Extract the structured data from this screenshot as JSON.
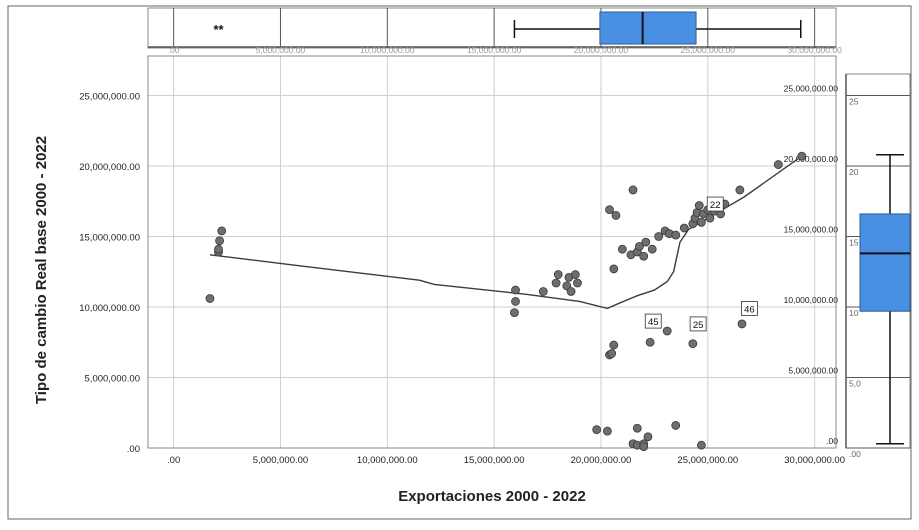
{
  "chart_data": {
    "type": "scatter",
    "xlabel": "Exportaciones 2000 - 2022",
    "ylabel": "Tipo de cambio Real base 2000 - 2022",
    "xlim": [
      -1200000,
      31000000
    ],
    "ylim": [
      0,
      27800000
    ],
    "x_ticks": [
      0,
      5000000,
      10000000,
      15000000,
      20000000,
      25000000,
      30000000
    ],
    "x_tick_labels": [
      ".00",
      "5,000,000.00",
      "10,000,000.00",
      "15,000,000.00",
      "20,000,000.00",
      "25,000,000.00",
      "30,000,000.00"
    ],
    "y_ticks": [
      0,
      5000000,
      10000000,
      15000000,
      20000000,
      25000000
    ],
    "y_tick_labels": [
      ".00",
      "5,000,000.00",
      "10,000,000.00",
      "15,000,000.00",
      "20,000,000.00",
      "25,000,000.00"
    ],
    "grid": true,
    "point_color": "#6e6e6e",
    "line_color": "#3c3c3c",
    "box_color": "#4a90e2",
    "points": [
      [
        1700000,
        10600000
      ],
      [
        2100000,
        13900000
      ],
      [
        2100000,
        14100000
      ],
      [
        2150000,
        14700000
      ],
      [
        2250000,
        15400000
      ],
      [
        16000000,
        11200000
      ],
      [
        16000000,
        10400000
      ],
      [
        15950000,
        9600000
      ],
      [
        17300000,
        11100000
      ],
      [
        17900000,
        11700000
      ],
      [
        18000000,
        12300000
      ],
      [
        18400000,
        11500000
      ],
      [
        18500000,
        12100000
      ],
      [
        18600000,
        11100000
      ],
      [
        18800000,
        12300000
      ],
      [
        18900000,
        11700000
      ],
      [
        20400000,
        6600000
      ],
      [
        20500000,
        6700000
      ],
      [
        20600000,
        7300000
      ],
      [
        20400000,
        16900000
      ],
      [
        20700000,
        16500000
      ],
      [
        20600000,
        12700000
      ],
      [
        21000000,
        14100000
      ],
      [
        21400000,
        13700000
      ],
      [
        21500000,
        18300000
      ],
      [
        21700000,
        13900000
      ],
      [
        21800000,
        14300000
      ],
      [
        22000000,
        13600000
      ],
      [
        22100000,
        14600000
      ],
      [
        22400000,
        14100000
      ],
      [
        22700000,
        15000000
      ],
      [
        23000000,
        15400000
      ],
      [
        23200000,
        15200000
      ],
      [
        23500000,
        15100000
      ],
      [
        23900000,
        15600000
      ],
      [
        24300000,
        15900000
      ],
      [
        24400000,
        16300000
      ],
      [
        24500000,
        16700000
      ],
      [
        24600000,
        17200000
      ],
      [
        24700000,
        16000000
      ],
      [
        24800000,
        16600000
      ],
      [
        25000000,
        16900000
      ],
      [
        25100000,
        16300000
      ],
      [
        25300000,
        16800000
      ],
      [
        25500000,
        17100000
      ],
      [
        25600000,
        16600000
      ],
      [
        25800000,
        17300000
      ],
      [
        26500000,
        18300000
      ],
      [
        28300000,
        20100000
      ],
      [
        29400000,
        20700000
      ],
      [
        23100000,
        8300000
      ],
      [
        22300000,
        7500000
      ],
      [
        24300000,
        7400000
      ],
      [
        26600000,
        8800000
      ],
      [
        19800000,
        1300000
      ],
      [
        20300000,
        1200000
      ],
      [
        21700000,
        1400000
      ],
      [
        21500000,
        300000
      ],
      [
        21700000,
        200000
      ],
      [
        22000000,
        300000
      ],
      [
        22200000,
        800000
      ],
      [
        22000000,
        100000
      ],
      [
        23500000,
        1600000
      ],
      [
        24700000,
        200000
      ]
    ],
    "labeled_points": [
      {
        "label": "22",
        "x": 25300000,
        "y": 17300000
      },
      {
        "label": "45",
        "x": 22400000,
        "y": 9000000
      },
      {
        "label": "25",
        "x": 24500000,
        "y": 8800000
      },
      {
        "label": "46",
        "x": 26900000,
        "y": 9900000
      }
    ],
    "fit_line": [
      [
        1700000,
        13700000
      ],
      [
        6000000,
        12900000
      ],
      [
        11500000,
        11900000
      ],
      [
        12200000,
        11600000
      ],
      [
        16500000,
        10900000
      ],
      [
        19000000,
        10400000
      ],
      [
        20300000,
        9900000
      ],
      [
        20900000,
        10300000
      ],
      [
        21700000,
        10800000
      ],
      [
        22500000,
        11200000
      ],
      [
        23100000,
        11800000
      ],
      [
        23400000,
        12500000
      ],
      [
        23700000,
        14600000
      ],
      [
        24100000,
        15500000
      ],
      [
        25000000,
        16300000
      ],
      [
        26700000,
        17800000
      ],
      [
        29400000,
        20700000
      ]
    ],
    "top_boxplot": {
      "q1": 19950000,
      "median": 21950000,
      "q3": 24450000,
      "whisker_low": 15950000,
      "whisker_high": 29350000,
      "outliers_label": "**",
      "outliers_x": [
        2000000,
        2200000
      ],
      "tick_labels": [
        ".00",
        "5,000,000.00",
        "10,000,000.00",
        "15,000,000.00",
        "20,000,000.00",
        "25,000,000.00",
        "30,000,000.00"
      ]
    },
    "right_boxplot": {
      "q1": 9700000,
      "median": 13800000,
      "q3": 16600000,
      "whisker_low": 300000,
      "whisker_high": 20800000,
      "tick_labels": [
        ".00",
        "5,000,000.00",
        "10,000,000.00",
        "15,000,000.00",
        "20,000,000.00",
        "25,000,000.00"
      ],
      "partial_labels": [
        ".00",
        "5,0",
        "10",
        "15",
        "20",
        "25"
      ]
    }
  }
}
